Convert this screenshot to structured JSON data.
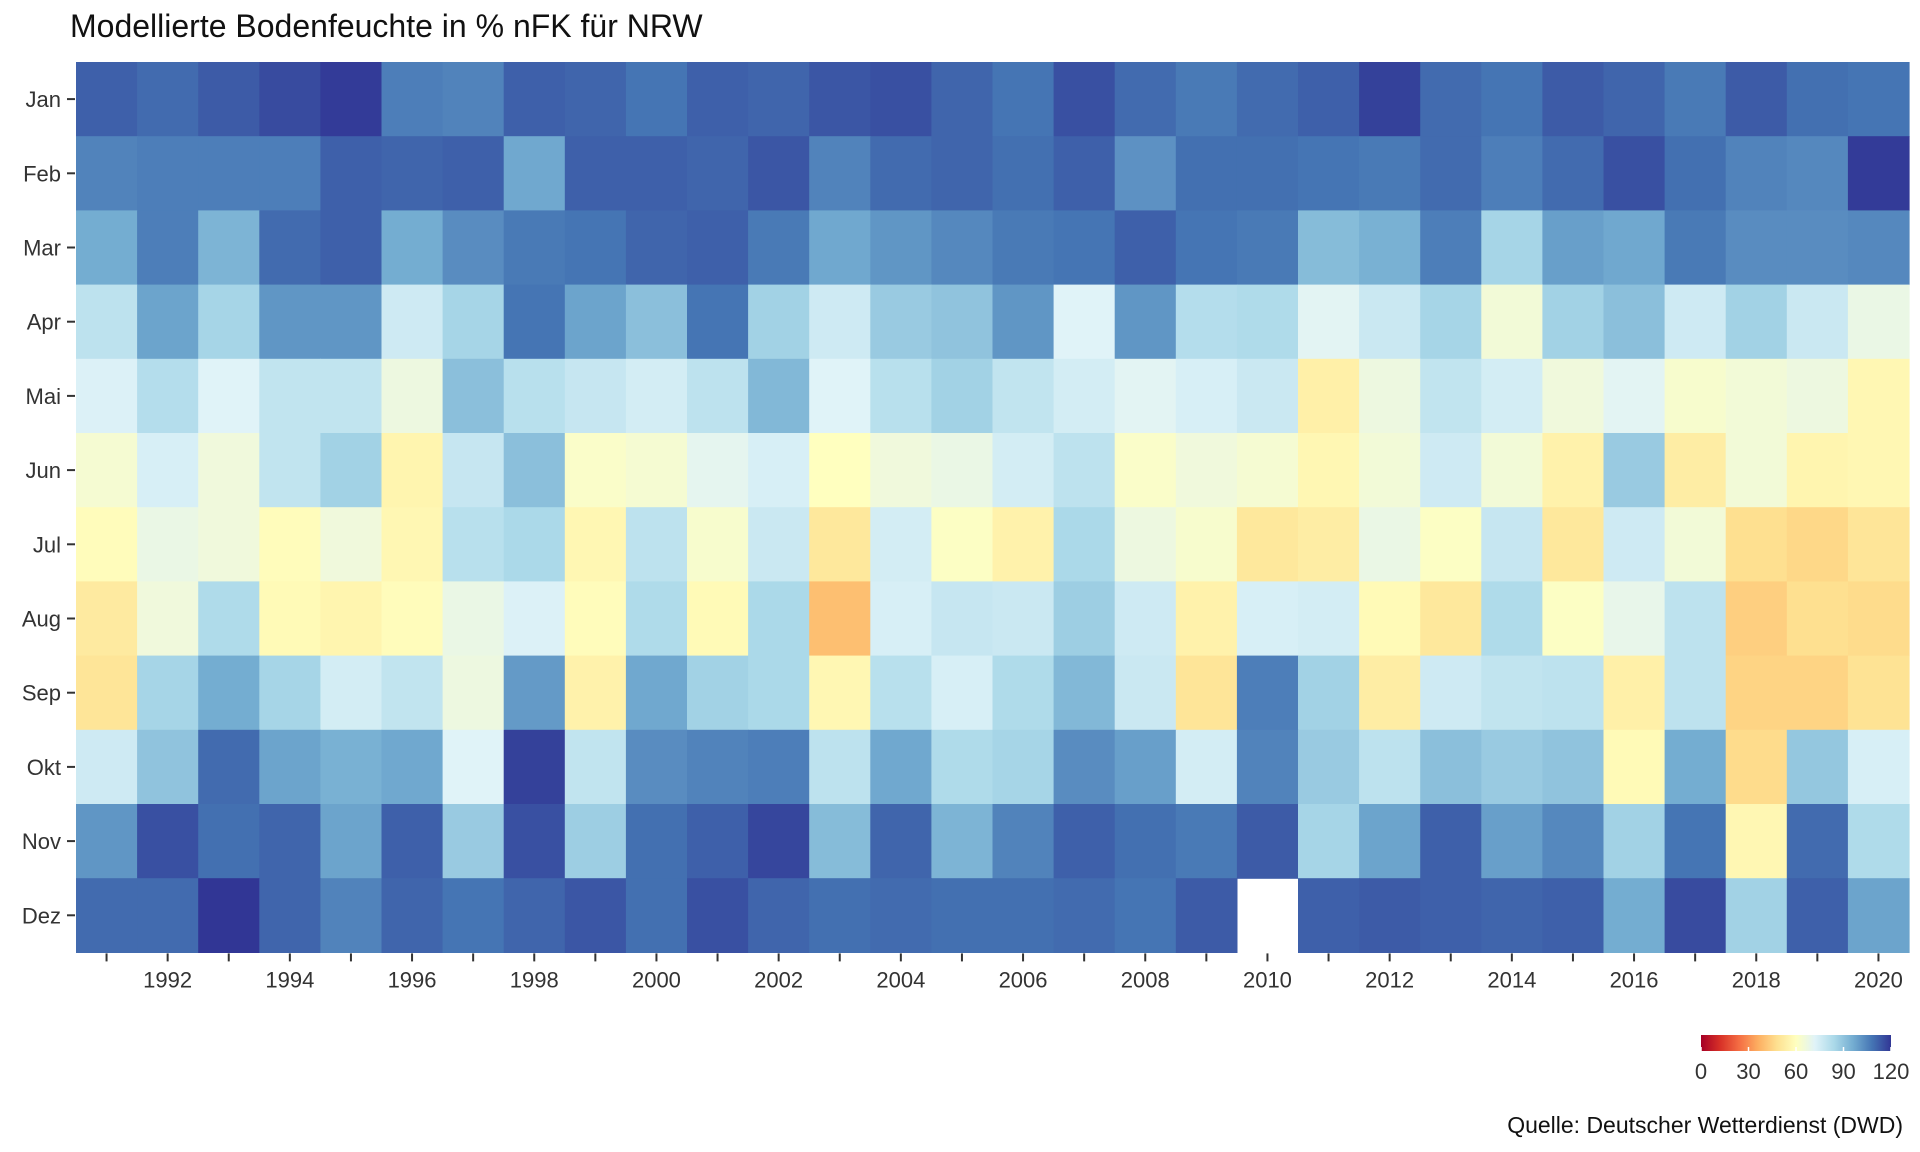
{
  "chart_data": {
    "type": "heatmap",
    "title": "Modellierte Bodenfeuchte in % nFK für NRW",
    "xlabel": "",
    "ylabel": "",
    "x": [
      1991,
      1992,
      1993,
      1994,
      1995,
      1996,
      1997,
      1998,
      1999,
      2000,
      2001,
      2002,
      2003,
      2004,
      2005,
      2006,
      2007,
      2008,
      2009,
      2010,
      2011,
      2012,
      2013,
      2014,
      2015,
      2016,
      2017,
      2018,
      2019,
      2020
    ],
    "x_tick_labels": [
      "1992",
      "1994",
      "1996",
      "1998",
      "2000",
      "2002",
      "2004",
      "2006",
      "2008",
      "2010",
      "2012",
      "2014",
      "2016",
      "2018",
      "2020"
    ],
    "y": [
      "Jan",
      "Feb",
      "Mar",
      "Apr",
      "Mai",
      "Jun",
      "Jul",
      "Aug",
      "Sep",
      "Okt",
      "Nov",
      "Dez"
    ],
    "values": [
      [
        112,
        110,
        113,
        116,
        119,
        106,
        105,
        112,
        111,
        108,
        112,
        111,
        114,
        115,
        111,
        108,
        115,
        110,
        107,
        110,
        112,
        118,
        110,
        108,
        113,
        111,
        107,
        113,
        109,
        108
      ],
      [
        105,
        106,
        106,
        106,
        112,
        111,
        112,
        97,
        112,
        112,
        111,
        114,
        105,
        110,
        111,
        109,
        112,
        102,
        109,
        109,
        108,
        107,
        110,
        106,
        110,
        115,
        109,
        105,
        104,
        119
      ],
      [
        96,
        106,
        94,
        110,
        112,
        96,
        103,
        107,
        108,
        111,
        112,
        107,
        97,
        101,
        104,
        107,
        108,
        112,
        108,
        107,
        92,
        95,
        106,
        85,
        99,
        97,
        107,
        103,
        103,
        104
      ],
      [
        80,
        98,
        85,
        101,
        101,
        76,
        85,
        108,
        98,
        91,
        108,
        86,
        76,
        88,
        90,
        101,
        72,
        101,
        82,
        83,
        71,
        77,
        85,
        65,
        86,
        91,
        76,
        86,
        77,
        68
      ],
      [
        73,
        82,
        72,
        79,
        79,
        67,
        91,
        81,
        78,
        75,
        80,
        93,
        72,
        81,
        86,
        79,
        75,
        71,
        74,
        77,
        54,
        67,
        79,
        75,
        66,
        71,
        63,
        65,
        67,
        57
      ],
      [
        64,
        74,
        66,
        79,
        86,
        56,
        78,
        91,
        62,
        64,
        70,
        74,
        60,
        66,
        68,
        75,
        80,
        62,
        66,
        64,
        57,
        65,
        76,
        65,
        55,
        88,
        53,
        65,
        56,
        57
      ],
      [
        59,
        68,
        66,
        59,
        66,
        57,
        81,
        84,
        57,
        80,
        63,
        77,
        51,
        75,
        61,
        55,
        84,
        67,
        63,
        51,
        53,
        68,
        61,
        78,
        51,
        76,
        65,
        48,
        46,
        50
      ],
      [
        52,
        66,
        83,
        58,
        56,
        59,
        68,
        73,
        59,
        83,
        58,
        84,
        40,
        74,
        78,
        77,
        87,
        76,
        55,
        74,
        75,
        58,
        51,
        83,
        61,
        69,
        80,
        44,
        48,
        47
      ],
      [
        50,
        85,
        96,
        85,
        75,
        79,
        67,
        100,
        55,
        97,
        86,
        84,
        57,
        81,
        74,
        83,
        93,
        77,
        50,
        106,
        86,
        53,
        76,
        79,
        80,
        54,
        80,
        45,
        45,
        49
      ],
      [
        76,
        90,
        110,
        98,
        95,
        97,
        72,
        118,
        79,
        103,
        105,
        106,
        80,
        97,
        83,
        85,
        103,
        99,
        75,
        105,
        88,
        80,
        91,
        88,
        90,
        58,
        96,
        47,
        89,
        74
      ],
      [
        101,
        115,
        109,
        111,
        98,
        112,
        88,
        115,
        87,
        109,
        112,
        117,
        92,
        111,
        94,
        105,
        112,
        109,
        107,
        113,
        85,
        98,
        112,
        99,
        104,
        86,
        108,
        57,
        110,
        83
      ],
      [
        110,
        110,
        123,
        111,
        105,
        111,
        108,
        111,
        114,
        109,
        115,
        111,
        109,
        110,
        109,
        109,
        110,
        108,
        113,
        null,
        112,
        113,
        112,
        111,
        112,
        96,
        116,
        86,
        112,
        98
      ]
    ],
    "colorbar": {
      "min": 0,
      "max": 120,
      "ticks": [
        0,
        30,
        60,
        90,
        120
      ]
    },
    "colors": [
      "#a50026",
      "#d73027",
      "#f46d43",
      "#fdae61",
      "#fee090",
      "#ffffbf",
      "#e0f3f8",
      "#abd9e9",
      "#74add1",
      "#4575b4",
      "#313695"
    ],
    "grid": false,
    "legend": "bottom-right",
    "source": "Quelle: Deutscher Wetterdienst (DWD)"
  }
}
